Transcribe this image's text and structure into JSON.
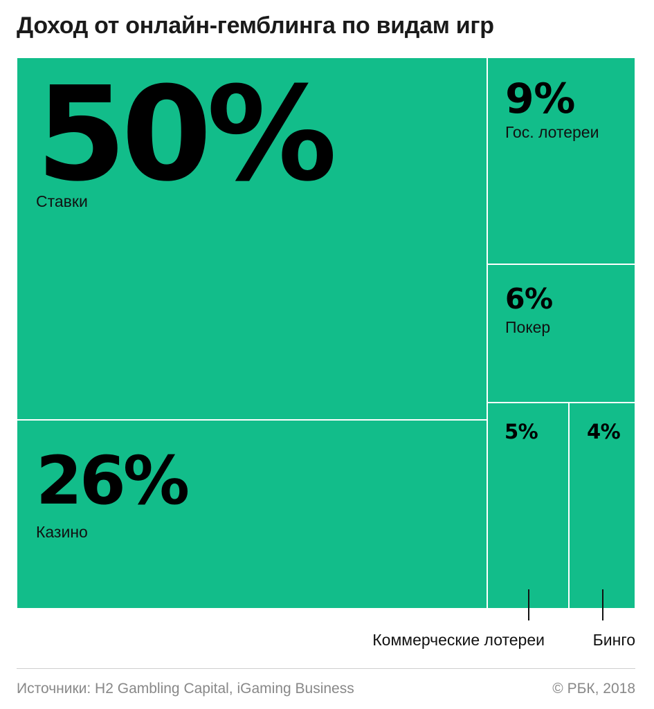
{
  "title": "Доход от онлайн-гемблинга по видам игр",
  "chart_data": {
    "type": "treemap",
    "title": "Доход от онлайн-гемблинга по видам игр",
    "unit": "%",
    "segments": [
      {
        "id": "bets",
        "label": "Ставки",
        "value": 50,
        "value_label": "50%",
        "label_position": "inside"
      },
      {
        "id": "casino",
        "label": "Казино",
        "value": 26,
        "value_label": "26%",
        "label_position": "inside"
      },
      {
        "id": "state-lottery",
        "label": "Гос. лотереи",
        "value": 9,
        "value_label": "9%",
        "label_position": "inside"
      },
      {
        "id": "poker",
        "label": "Покер",
        "value": 6,
        "value_label": "6%",
        "label_position": "inside"
      },
      {
        "id": "commercial-lottery",
        "label": "Коммерческие лотереи",
        "value": 5,
        "value_label": "5%",
        "label_position": "below"
      },
      {
        "id": "bingo",
        "label": "Бинго",
        "value": 4,
        "value_label": "4%",
        "label_position": "below"
      }
    ],
    "color": "#12bd8a"
  },
  "footer": {
    "source": "Источники: H2 Gambling Capital, iGaming Business",
    "copyright": "© РБК, 2018"
  }
}
